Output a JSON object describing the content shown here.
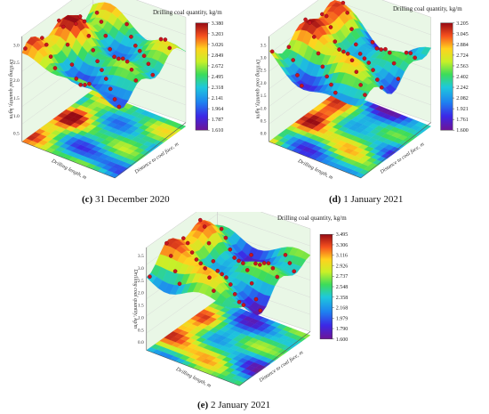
{
  "chart_data": [
    {
      "type": "surface3d",
      "caption_letter": "(c)",
      "caption_text": "31 December 2020",
      "colorbar_title": "Drilling coal quantity, kg/m",
      "colorbar_ticks": [
        "3.380",
        "3.203",
        "3.026",
        "2.849",
        "2.672",
        "2.495",
        "2.318",
        "2.141",
        "1.964",
        "1.787",
        "1.610"
      ],
      "z_label": "Drilling coal quantity, kg/m",
      "x_label": "Drilling length, m",
      "y_label": "Distance to coal face, m",
      "z_ticks": [
        "0.5",
        "1.0",
        "1.5",
        "2.0",
        "2.5",
        "3.0"
      ]
    },
    {
      "type": "surface3d",
      "caption_letter": "(d)",
      "caption_text": "1 January 2021",
      "colorbar_title": "Drilling coal quantity, kg/m",
      "colorbar_ticks": [
        "3.205",
        "3.045",
        "2.884",
        "2.724",
        "2.563",
        "2.402",
        "2.242",
        "2.082",
        "1.921",
        "1.761",
        "1.600"
      ],
      "z_label": "Drilling coal quantity, kg/m",
      "x_label": "Drilling length, m",
      "y_label": "Distance to coal face, m",
      "z_ticks": [
        "0.0",
        "0.5",
        "1.0",
        "1.5",
        "2.0",
        "2.5",
        "3.0",
        "3.5"
      ]
    },
    {
      "type": "surface3d",
      "caption_letter": "(e)",
      "caption_text": "2 January 2021",
      "colorbar_title": "Drilling coal quantity, kg/m",
      "colorbar_ticks": [
        "3.495",
        "3.306",
        "3.116",
        "2.926",
        "2.737",
        "2.548",
        "2.358",
        "2.168",
        "1.979",
        "1.790",
        "1.600"
      ],
      "z_label": "Drilling coal quantity, kg/m",
      "x_label": "Drilling length, m",
      "y_label": "Distance to coal face, m",
      "z_ticks": [
        "0.0",
        "0.5",
        "1.0",
        "1.5",
        "2.0",
        "2.5",
        "3.0",
        "3.5"
      ]
    }
  ]
}
